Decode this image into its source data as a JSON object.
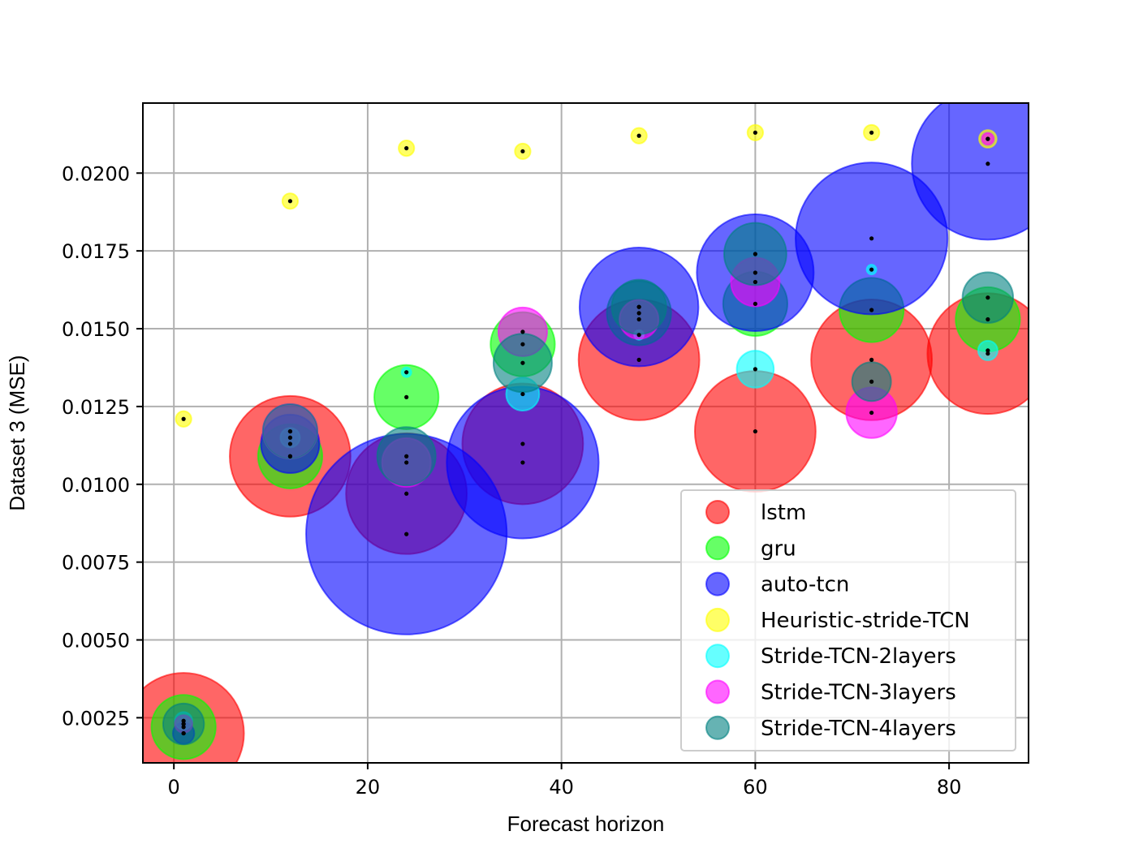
{
  "chart_data": {
    "type": "scatter",
    "xlabel": "Forecast horizon",
    "ylabel": "Dataset 3 (MSE)",
    "xlim": [
      -3.2,
      88.2
    ],
    "ylim": [
      0.00105,
      0.02225
    ],
    "xticks": [
      0,
      20,
      40,
      60,
      80
    ],
    "xtick_labels": [
      "0",
      "20",
      "40",
      "60",
      "80"
    ],
    "yticks": [
      0.0025,
      0.005,
      0.0075,
      0.01,
      0.0125,
      0.015,
      0.0175,
      0.02
    ],
    "ytick_labels": [
      "0.0025",
      "0.0050",
      "0.0075",
      "0.0100",
      "0.0125",
      "0.0150",
      "0.0175",
      "0.0200"
    ],
    "grid": true,
    "legend_position": "lower-right",
    "marker_size_meaning": "bubble size varies per point",
    "series": [
      {
        "name": "lstm",
        "color": "#ff0000",
        "points": [
          {
            "x": 1,
            "y": 0.002,
            "size": 6.2
          },
          {
            "x": 12,
            "y": 0.0109,
            "size": 6.2
          },
          {
            "x": 24,
            "y": 0.0097,
            "size": 6.2
          },
          {
            "x": 36,
            "y": 0.0113,
            "size": 6.2
          },
          {
            "x": 48,
            "y": 0.014,
            "size": 6.2
          },
          {
            "x": 60,
            "y": 0.0117,
            "size": 6.2
          },
          {
            "x": 72,
            "y": 0.014,
            "size": 6.2
          },
          {
            "x": 84,
            "y": 0.0142,
            "size": 6.2
          }
        ]
      },
      {
        "name": "gru",
        "color": "#00ff00",
        "points": [
          {
            "x": 1,
            "y": 0.0022,
            "size": 3.3
          },
          {
            "x": 12,
            "y": 0.0109,
            "size": 3.3
          },
          {
            "x": 24,
            "y": 0.0128,
            "size": 3.3
          },
          {
            "x": 36,
            "y": 0.0145,
            "size": 3.3
          },
          {
            "x": 48,
            "y": 0.0155,
            "size": 3.3
          },
          {
            "x": 60,
            "y": 0.0158,
            "size": 3.3
          },
          {
            "x": 72,
            "y": 0.0156,
            "size": 3.3
          },
          {
            "x": 84,
            "y": 0.0153,
            "size": 3.3
          }
        ]
      },
      {
        "name": "auto-tcn",
        "color": "#0000ff",
        "points": [
          {
            "x": 1,
            "y": 0.002,
            "size": 1.1
          },
          {
            "x": 12,
            "y": 0.0113,
            "size": 3.0
          },
          {
            "x": 24,
            "y": 0.0084,
            "size": 10.3
          },
          {
            "x": 36,
            "y": 0.0107,
            "size": 7.8
          },
          {
            "x": 48,
            "y": 0.0157,
            "size": 6.1
          },
          {
            "x": 60,
            "y": 0.0168,
            "size": 6.0
          },
          {
            "x": 72,
            "y": 0.0179,
            "size": 7.8
          },
          {
            "x": 84,
            "y": 0.0203,
            "size": 7.8
          }
        ]
      },
      {
        "name": "Heuristic-stride-TCN",
        "color": "#ffff00",
        "points": [
          {
            "x": 1,
            "y": 0.0121,
            "size": 0.8
          },
          {
            "x": 12,
            "y": 0.0191,
            "size": 0.8
          },
          {
            "x": 24,
            "y": 0.0208,
            "size": 0.8
          },
          {
            "x": 36,
            "y": 0.0207,
            "size": 0.8
          },
          {
            "x": 48,
            "y": 0.0212,
            "size": 0.8
          },
          {
            "x": 60,
            "y": 0.0213,
            "size": 0.8
          },
          {
            "x": 72,
            "y": 0.0213,
            "size": 0.8
          },
          {
            "x": 84,
            "y": 0.0211,
            "size": 0.9
          }
        ]
      },
      {
        "name": "Stride-TCN-2layers",
        "color": "#00ffff",
        "points": [
          {
            "x": 1,
            "y": 0.0024,
            "size": 0.9
          },
          {
            "x": 12,
            "y": 0.0115,
            "size": 1.0
          },
          {
            "x": 24,
            "y": 0.0136,
            "size": 0.5
          },
          {
            "x": 36,
            "y": 0.0129,
            "size": 1.7
          },
          {
            "x": 48,
            "y": 0.0148,
            "size": 0.5
          },
          {
            "x": 60,
            "y": 0.0137,
            "size": 1.9
          },
          {
            "x": 72,
            "y": 0.0169,
            "size": 0.5
          },
          {
            "x": 84,
            "y": 0.0143,
            "size": 1.0
          }
        ]
      },
      {
        "name": "Stride-TCN-3layers",
        "color": "#ff00ff",
        "points": [
          {
            "x": 1,
            "y": 0.0023,
            "size": 0.9
          },
          {
            "x": 12,
            "y": 0.0117,
            "size": 2.8
          },
          {
            "x": 24,
            "y": 0.0107,
            "size": 2.5
          },
          {
            "x": 36,
            "y": 0.0149,
            "size": 2.5
          },
          {
            "x": 48,
            "y": 0.0153,
            "size": 2.0
          },
          {
            "x": 60,
            "y": 0.0165,
            "size": 2.5
          },
          {
            "x": 72,
            "y": 0.0123,
            "size": 2.6
          },
          {
            "x": 84,
            "y": 0.0211,
            "size": 0.6
          }
        ]
      },
      {
        "name": "Stride-TCN-4layers",
        "color": "#008080",
        "points": [
          {
            "x": 1,
            "y": 0.0023,
            "size": 2.1
          },
          {
            "x": 12,
            "y": 0.0117,
            "size": 2.8
          },
          {
            "x": 24,
            "y": 0.0109,
            "size": 3.0
          },
          {
            "x": 36,
            "y": 0.0139,
            "size": 3.0
          },
          {
            "x": 48,
            "y": 0.0157,
            "size": 2.8
          },
          {
            "x": 60,
            "y": 0.0174,
            "size": 3.2
          },
          {
            "x": 72,
            "y": 0.0133,
            "size": 2.0
          },
          {
            "x": 84,
            "y": 0.016,
            "size": 2.6
          }
        ]
      }
    ]
  }
}
